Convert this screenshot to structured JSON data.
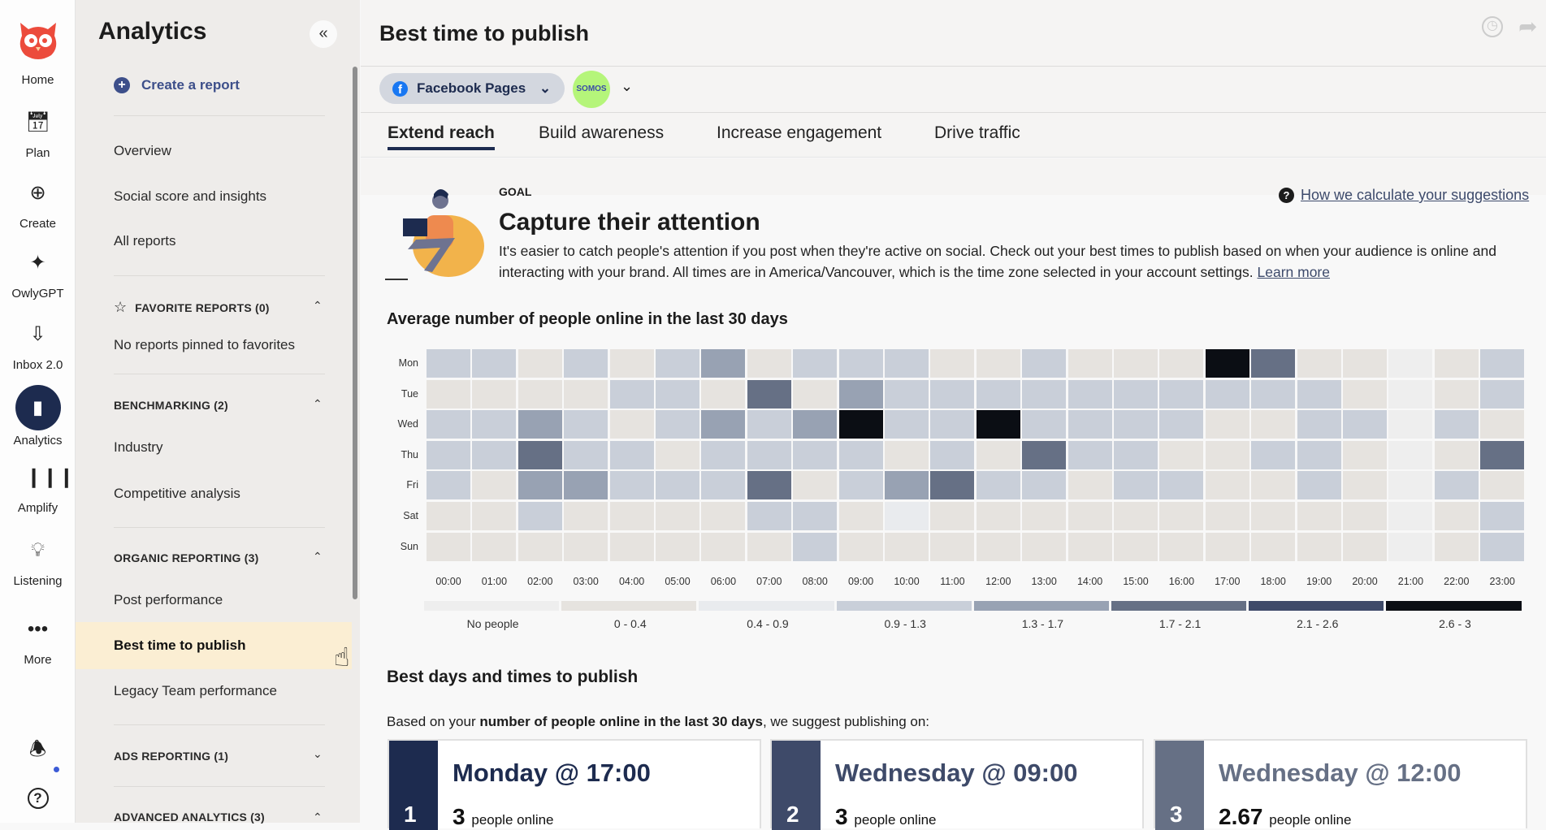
{
  "rail": {
    "items": [
      {
        "label": "Home",
        "icon": "owl-logo-icon"
      },
      {
        "label": "Plan",
        "icon": "calendar-icon"
      },
      {
        "label": "Create",
        "icon": "plus-circle-icon"
      },
      {
        "label": "OwlyGPT",
        "icon": "sparkles-icon"
      },
      {
        "label": "Inbox 2.0",
        "icon": "inbox-icon"
      },
      {
        "label": "Analytics",
        "icon": "bar-chart-icon"
      },
      {
        "label": "Amplify",
        "icon": "amplify-icon"
      },
      {
        "label": "Listening",
        "icon": "lightbulb-icon"
      },
      {
        "label": "More",
        "icon": "more-dots-icon"
      }
    ],
    "bottom": [
      "bell-icon",
      "help-icon"
    ]
  },
  "sidebar": {
    "title": "Analytics",
    "create": "Create a report",
    "links": [
      "Overview",
      "Social score and insights",
      "All reports"
    ],
    "favorites": {
      "label": "FAVORITE REPORTS (0)",
      "empty": "No reports pinned to favorites"
    },
    "benchmarking": {
      "label": "BENCHMARKING (2)",
      "items": [
        "Industry",
        "Competitive analysis"
      ]
    },
    "organic": {
      "label": "ORGANIC REPORTING (3)",
      "items": [
        "Post performance",
        "Best time to publish",
        "Legacy Team performance"
      ]
    },
    "ads": {
      "label": "ADS REPORTING (1)"
    },
    "advanced": {
      "label": "ADVANCED ANALYTICS (3)"
    },
    "active": "Best time to publish"
  },
  "header": {
    "title": "Best time to publish",
    "network": "Facebook Pages",
    "account": "SOMOS"
  },
  "tabs": [
    "Extend reach",
    "Build awareness",
    "Increase engagement",
    "Drive traffic"
  ],
  "active_tab": "Extend reach",
  "goal": {
    "label": "GOAL",
    "heading": "Capture their attention",
    "text": "It's easier to catch people's attention if you post when they're active on social. Check out your best times to publish based on when your audience is online and interacting with your brand. All times are in America/Vancouver, which is the time zone selected in your account settings.",
    "learn_more": "Learn more",
    "help_link": "How we calculate your suggestions"
  },
  "chart_data": {
    "type": "heatmap",
    "title": "Average number of people online in the last 30 days",
    "rows": [
      "Mon",
      "Tue",
      "Wed",
      "Thu",
      "Fri",
      "Sat",
      "Sun"
    ],
    "columns": [
      "00:00",
      "01:00",
      "02:00",
      "03:00",
      "04:00",
      "05:00",
      "06:00",
      "07:00",
      "08:00",
      "09:00",
      "10:00",
      "11:00",
      "12:00",
      "13:00",
      "14:00",
      "15:00",
      "16:00",
      "17:00",
      "18:00",
      "19:00",
      "20:00",
      "21:00",
      "22:00",
      "23:00"
    ],
    "values": [
      [
        1.1,
        1.1,
        0.2,
        1.1,
        0.2,
        1.1,
        1.5,
        0.2,
        1.1,
        1.1,
        1.1,
        0.2,
        0.2,
        1.1,
        0.2,
        0.2,
        0.2,
        3,
        1.9,
        0.2,
        0.2,
        0,
        0.2,
        1.1
      ],
      [
        0.2,
        0.2,
        0.2,
        0.2,
        1.1,
        1.1,
        0.2,
        1.9,
        0.2,
        1.5,
        1.1,
        1.1,
        1.1,
        1.1,
        1.1,
        1.1,
        1.1,
        1.1,
        1.1,
        1.1,
        0.2,
        0,
        0.2,
        1.1
      ],
      [
        1.1,
        1.1,
        1.5,
        1.1,
        0.2,
        1.1,
        1.5,
        1.1,
        1.5,
        3,
        1.1,
        1.1,
        2.67,
        1.1,
        1.1,
        1.1,
        1.1,
        0.2,
        0.2,
        1.1,
        1.1,
        0,
        1.1,
        0.2
      ],
      [
        1.1,
        1.1,
        1.9,
        1.1,
        1.1,
        0.2,
        1.1,
        1.1,
        1.1,
        1.1,
        0.2,
        1.1,
        0.2,
        1.9,
        1.1,
        1.1,
        0.2,
        0.2,
        1.1,
        1.1,
        0.2,
        0,
        0.2,
        1.9
      ],
      [
        1.1,
        0.2,
        1.5,
        1.5,
        1.1,
        1.1,
        1.1,
        1.9,
        0.2,
        1.1,
        1.5,
        1.9,
        1.1,
        1.1,
        0.2,
        1.1,
        1.1,
        0.2,
        0.2,
        1.1,
        0.2,
        0,
        1.1,
        0.2
      ],
      [
        0.2,
        0.2,
        1.1,
        0.2,
        0.2,
        0.2,
        0.2,
        1.1,
        1.1,
        0.2,
        0.7,
        0.2,
        0.2,
        0.2,
        0.2,
        0.2,
        0.2,
        0.2,
        0.2,
        0.2,
        0.2,
        0,
        0.2,
        1.1
      ],
      [
        0.2,
        0.2,
        0.2,
        0.2,
        0.2,
        0.2,
        0.2,
        0.2,
        1.1,
        0.2,
        0.2,
        0.2,
        0.2,
        0.2,
        0.2,
        0.2,
        0.2,
        0.2,
        0.2,
        0.2,
        0.2,
        0,
        0.2,
        1.1
      ]
    ],
    "legend": [
      {
        "label": "No people",
        "min": 0,
        "max": 0,
        "color": "#eeeeee"
      },
      {
        "label": "0 - 0.4",
        "min": 0,
        "max": 0.4,
        "color": "#e6e3df"
      },
      {
        "label": "0.4 - 0.9",
        "min": 0.4,
        "max": 0.9,
        "color": "#e9ebee"
      },
      {
        "label": "0.9 - 1.3",
        "min": 0.9,
        "max": 1.3,
        "color": "#c9cfd9"
      },
      {
        "label": "1.3 - 1.7",
        "min": 1.3,
        "max": 1.7,
        "color": "#98a2b3"
      },
      {
        "label": "1.7 - 2.1",
        "min": 1.7,
        "max": 2.1,
        "color": "#667085"
      },
      {
        "label": "2.1 - 2.6",
        "min": 2.1,
        "max": 2.6,
        "color": "#3e4a69"
      },
      {
        "label": "2.6 - 3",
        "min": 2.6,
        "max": 3,
        "color": "#0b0e14"
      }
    ],
    "legend_position": "bottom"
  },
  "best": {
    "title": "Best days and times to publish",
    "intro_pre": "Based on your ",
    "intro_bold": "number of people online in the last 30 days",
    "intro_post": ", we suggest publishing on:",
    "cards": [
      {
        "rank": "1",
        "when": "Monday @ 17:00",
        "count": "3",
        "unit": "people online",
        "color": "#1d2b4f"
      },
      {
        "rank": "2",
        "when": "Wednesday @ 09:00",
        "count": "3",
        "unit": "people online",
        "color": "#3e4a69"
      },
      {
        "rank": "3",
        "when": "Wednesday @ 12:00",
        "count": "2.67",
        "unit": "people online",
        "color": "#667085"
      }
    ]
  }
}
